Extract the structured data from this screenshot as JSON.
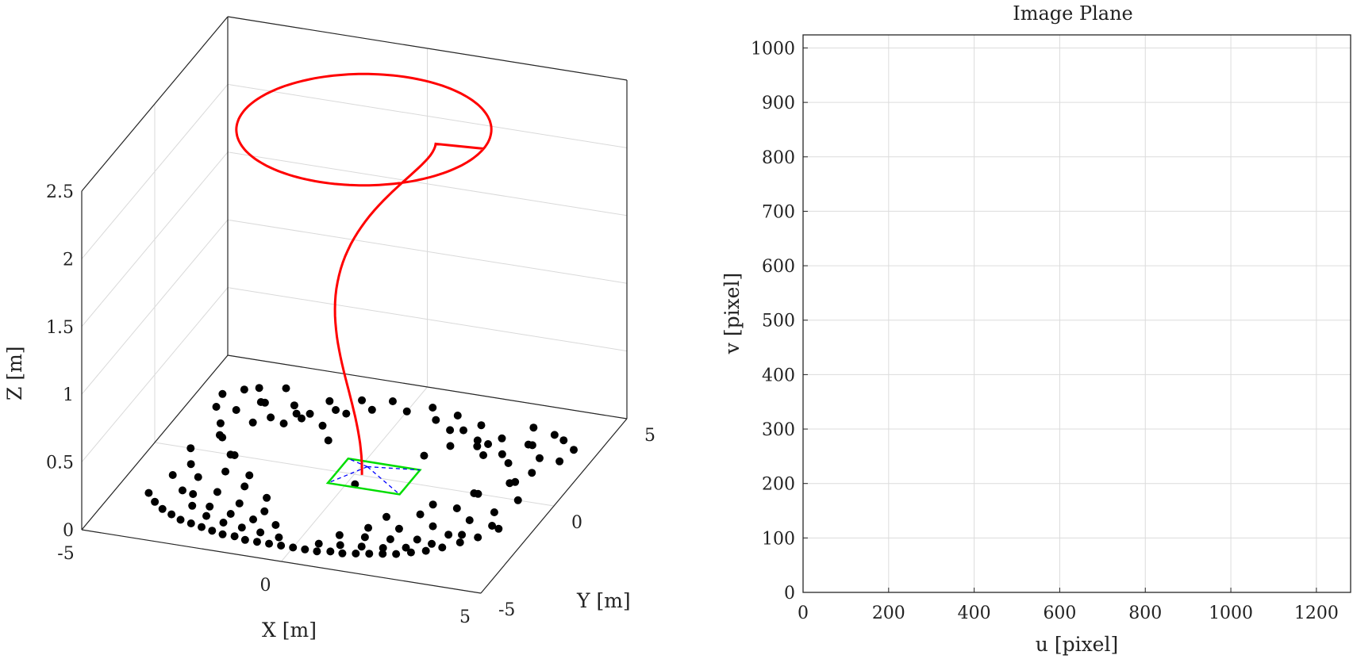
{
  "chart_data": [
    {
      "type": "scatter",
      "view": "3d",
      "xlabel": "X [m]",
      "ylabel": "Y [m]",
      "zlabel": "Z [m]",
      "xlim": [
        -5,
        5
      ],
      "ylim": [
        -5,
        5
      ],
      "zlim": [
        0,
        2.5
      ],
      "xticks": [
        "-5",
        "0",
        "5"
      ],
      "yticks": [
        "-5",
        "0",
        "5"
      ],
      "zticks": [
        "0",
        "0.5",
        "1",
        "1.5",
        "2",
        "2.5"
      ],
      "grid": true,
      "colors": {
        "points": "#000000",
        "trajectory": "#ff0000",
        "camera_frame": "#00dd00",
        "camera_rays": "#0000ff"
      },
      "series": [
        {
          "kind": "points",
          "x": [
            -4.2,
            -3.9,
            -3.6,
            -3.3,
            -3.0,
            -2.7,
            -2.4,
            -2.1,
            -1.8,
            -1.5,
            -1.2,
            -0.9,
            -0.6,
            -0.3,
            0.0,
            0.3,
            0.6,
            0.9,
            1.2,
            1.5,
            1.8,
            2.1,
            2.4,
            2.7,
            3.0,
            3.3,
            3.6,
            3.9,
            4.2,
            -4.0,
            -3.5,
            -3.0,
            -2.5,
            -2.0,
            -1.5,
            -1.0,
            -0.5,
            0.5,
            1.0,
            1.5,
            2.0,
            2.5,
            3.0,
            3.5,
            4.0,
            -3.8,
            -3.2,
            -2.6,
            -2.0,
            -1.4,
            -0.8,
            0.8,
            1.4,
            2.0,
            2.6,
            3.2,
            3.8,
            -4.1,
            -3.4,
            -2.7,
            -2.0,
            -1.3,
            1.3,
            2.0,
            2.7,
            3.4,
            4.1,
            -3.6,
            -2.9,
            -2.2,
            -1.5,
            1.5,
            2.2,
            2.9,
            3.6,
            -3.9,
            -3.1,
            -2.3,
            2.3,
            3.1,
            3.9,
            -4.3,
            -3.7,
            -3.0,
            3.0,
            3.7,
            4.3,
            -4.4,
            -3.8,
            -3.2,
            -2.4,
            -1.6,
            -0.8,
            0.0,
            0.8,
            1.6,
            2.4,
            3.2,
            3.8,
            4.4,
            -4.0,
            -3.3,
            -2.6,
            -1.9,
            -1.2,
            -0.5,
            0.5,
            1.2,
            1.9,
            2.6,
            3.3,
            4.0,
            -3.7,
            -2.9,
            -2.1,
            -1.3,
            1.3,
            2.1,
            2.9,
            3.7,
            -3.4,
            -2.5,
            -1.6,
            1.6,
            2.5,
            3.4,
            -3.1,
            -2.2,
            -1.2,
            1.2,
            2.2,
            3.1,
            0.2
          ],
          "y": [
            -2.6,
            -3.0,
            -3.3,
            -3.5,
            -3.7,
            -3.8,
            -3.9,
            -4.0,
            -4.1,
            -4.1,
            -4.2,
            -4.2,
            -4.2,
            -4.2,
            -4.2,
            -4.2,
            -4.2,
            -4.1,
            -4.1,
            -4.0,
            -3.9,
            -3.8,
            -3.7,
            -3.5,
            -3.3,
            -3.0,
            -2.6,
            -2.2,
            -1.6,
            -1.5,
            -2.2,
            -2.9,
            -3.3,
            -3.5,
            -3.6,
            -3.7,
            -3.8,
            -3.8,
            -3.7,
            -3.6,
            -3.5,
            -3.3,
            -2.9,
            -2.2,
            -1.5,
            -0.8,
            -2.3,
            -2.8,
            -3.0,
            -3.1,
            -3.2,
            -3.2,
            -3.1,
            -3.0,
            -2.8,
            -2.3,
            -0.8,
            0.0,
            -1.4,
            -2.0,
            -2.4,
            -2.6,
            -2.6,
            -2.4,
            -2.0,
            -1.4,
            0.0,
            0.8,
            -0.9,
            -1.5,
            -1.9,
            -1.9,
            -1.5,
            -0.9,
            0.8,
            1.5,
            0.0,
            -0.9,
            -0.9,
            0.0,
            1.5,
            2.3,
            0.9,
            0.0,
            0.0,
            0.9,
            2.3,
            3.0,
            2.3,
            1.8,
            2.6,
            3.1,
            3.4,
            3.6,
            3.4,
            3.1,
            2.6,
            1.8,
            2.3,
            3.0,
            3.4,
            2.9,
            3.0,
            3.5,
            3.8,
            4.0,
            4.0,
            3.8,
            3.5,
            3.0,
            2.9,
            3.4,
            3.6,
            2.2,
            2.7,
            3.0,
            3.0,
            2.7,
            2.2,
            3.6,
            2.9,
            2.0,
            2.2,
            2.2,
            2.0,
            2.9,
            3.8,
            2.4,
            1.5,
            1.5,
            2.4,
            3.8,
            -0.5
          ],
          "z": [
            0
          ]
        },
        {
          "kind": "trajectory",
          "description_points": "circle of radius ~3 at z~2.4 then descending helix to camera pose near origin at z~0"
        }
      ]
    },
    {
      "type": "line",
      "title": "Image Plane",
      "xlabel": "u [pixel]",
      "ylabel": "v [pixel]",
      "xlim": [
        0,
        1280
      ],
      "ylim": [
        0,
        1024
      ],
      "xticks": [
        "0",
        "200",
        "400",
        "600",
        "800",
        "1000",
        "1200"
      ],
      "yticks": [
        "0",
        "100",
        "200",
        "300",
        "400",
        "500",
        "600",
        "700",
        "800",
        "900",
        "1000"
      ],
      "grid": true,
      "series": []
    }
  ]
}
